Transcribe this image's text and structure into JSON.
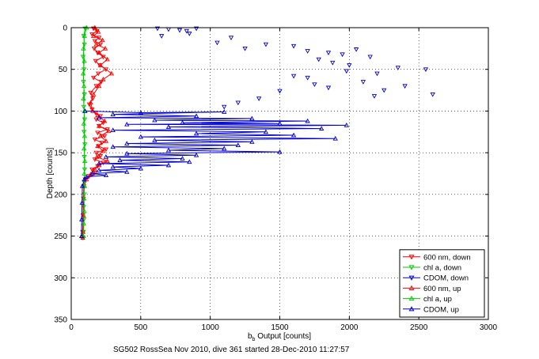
{
  "chart_data": {
    "type": "scatter",
    "title": "",
    "caption": "SG502 RossSea Nov 2010, dive 361 started 28-Dec-2010 11:27:57",
    "xlabel_main": "b",
    "xlabel_sub": "b",
    "xlabel_rest": " Output [counts]",
    "ylabel": "Depth [counts]",
    "xlim": [
      0,
      3000
    ],
    "ylim": [
      0,
      350
    ],
    "y_reversed": true,
    "grid": true,
    "legend_position": "bottom-right",
    "xticks": [
      0,
      500,
      1000,
      1500,
      2000,
      2500,
      3000
    ],
    "yticks": [
      0,
      50,
      100,
      150,
      200,
      250,
      300,
      350
    ],
    "series": [
      {
        "name": "600 nm, down",
        "color": "#ff0000",
        "marker": "triangle-down",
        "line": true,
        "points": [
          [
            160,
            1
          ],
          [
            185,
            4
          ],
          [
            150,
            8
          ],
          [
            200,
            12
          ],
          [
            170,
            16
          ],
          [
            210,
            20
          ],
          [
            165,
            25
          ],
          [
            190,
            30
          ],
          [
            230,
            35
          ],
          [
            175,
            40
          ],
          [
            205,
            45
          ],
          [
            250,
            50
          ],
          [
            195,
            55
          ],
          [
            160,
            60
          ],
          [
            215,
            65
          ],
          [
            180,
            70
          ],
          [
            140,
            78
          ],
          [
            155,
            85
          ],
          [
            130,
            92
          ],
          [
            150,
            98
          ],
          [
            175,
            102
          ],
          [
            210,
            106
          ],
          [
            180,
            110
          ],
          [
            230,
            114
          ],
          [
            200,
            118
          ],
          [
            260,
            122
          ],
          [
            190,
            126
          ],
          [
            240,
            130
          ],
          [
            170,
            134
          ],
          [
            220,
            138
          ],
          [
            195,
            142
          ],
          [
            250,
            146
          ],
          [
            180,
            150
          ],
          [
            210,
            154
          ],
          [
            170,
            158
          ],
          [
            230,
            162
          ],
          [
            190,
            166
          ],
          [
            150,
            170
          ],
          [
            170,
            174
          ],
          [
            130,
            178
          ],
          [
            100,
            182
          ],
          [
            90,
            190
          ],
          [
            88,
            205
          ],
          [
            85,
            225
          ],
          [
            82,
            245
          ],
          [
            80,
            252
          ]
        ]
      },
      {
        "name": "chl a, down",
        "color": "#00cc00",
        "marker": "triangle-down",
        "line": true,
        "points": [
          [
            100,
            1
          ],
          [
            90,
            10
          ],
          [
            95,
            20
          ],
          [
            85,
            35
          ],
          [
            92,
            50
          ],
          [
            88,
            65
          ],
          [
            95,
            80
          ],
          [
            90,
            95
          ],
          [
            96,
            110
          ],
          [
            92,
            125
          ],
          [
            98,
            140
          ],
          [
            94,
            155
          ],
          [
            96,
            170
          ],
          [
            92,
            185
          ],
          [
            94,
            200
          ],
          [
            90,
            215
          ],
          [
            92,
            230
          ],
          [
            88,
            245
          ],
          [
            86,
            252
          ]
        ]
      },
      {
        "name": "CDOM, down",
        "color": "#0000cc",
        "marker": "triangle-down",
        "line": false,
        "points": [
          [
            620,
            1
          ],
          [
            700,
            2
          ],
          [
            780,
            3
          ],
          [
            830,
            4
          ],
          [
            900,
            1
          ],
          [
            850,
            7
          ],
          [
            650,
            10
          ],
          [
            1150,
            12
          ],
          [
            1050,
            18
          ],
          [
            1400,
            20
          ],
          [
            1250,
            25
          ],
          [
            1600,
            22
          ],
          [
            1700,
            28
          ],
          [
            1850,
            30
          ],
          [
            2050,
            26
          ],
          [
            1950,
            32
          ],
          [
            2150,
            35
          ],
          [
            1780,
            38
          ],
          [
            1880,
            42
          ],
          [
            2000,
            45
          ],
          [
            2350,
            48
          ],
          [
            2550,
            50
          ],
          [
            1980,
            52
          ],
          [
            2200,
            55
          ],
          [
            1700,
            60
          ],
          [
            2100,
            65
          ],
          [
            2400,
            70
          ],
          [
            1850,
            72
          ],
          [
            2250,
            75
          ],
          [
            2600,
            80
          ],
          [
            2180,
            82
          ],
          [
            1600,
            58
          ],
          [
            1750,
            68
          ],
          [
            1500,
            76
          ],
          [
            1350,
            85
          ],
          [
            1200,
            90
          ],
          [
            1100,
            95
          ]
        ]
      },
      {
        "name": "600 nm, up",
        "color": "#ff0000",
        "marker": "triangle-up",
        "line": true,
        "points": [
          [
            170,
            0
          ],
          [
            195,
            5
          ],
          [
            160,
            10
          ],
          [
            225,
            15
          ],
          [
            180,
            20
          ],
          [
            245,
            25
          ],
          [
            200,
            30
          ],
          [
            260,
            38
          ],
          [
            210,
            45
          ],
          [
            290,
            55
          ],
          [
            230,
            62
          ],
          [
            200,
            70
          ],
          [
            160,
            80
          ],
          [
            140,
            90
          ],
          [
            155,
            100
          ],
          [
            190,
            105
          ],
          [
            240,
            112
          ],
          [
            200,
            118
          ],
          [
            270,
            124
          ],
          [
            210,
            130
          ],
          [
            250,
            136
          ],
          [
            190,
            142
          ],
          [
            230,
            148
          ],
          [
            185,
            155
          ],
          [
            260,
            160
          ],
          [
            200,
            165
          ],
          [
            170,
            170
          ],
          [
            140,
            176
          ],
          [
            110,
            182
          ],
          [
            95,
            190
          ],
          [
            90,
            205
          ],
          [
            88,
            225
          ],
          [
            85,
            245
          ],
          [
            83,
            252
          ]
        ]
      },
      {
        "name": "chl a, up",
        "color": "#00cc00",
        "marker": "triangle-up",
        "line": true,
        "points": [
          [
            110,
            0
          ],
          [
            95,
            10
          ],
          [
            88,
            25
          ],
          [
            94,
            40
          ],
          [
            86,
            55
          ],
          [
            92,
            70
          ],
          [
            88,
            85
          ],
          [
            94,
            100
          ],
          [
            90,
            115
          ],
          [
            96,
            130
          ],
          [
            92,
            145
          ],
          [
            98,
            160
          ],
          [
            94,
            175
          ],
          [
            96,
            190
          ],
          [
            92,
            205
          ],
          [
            94,
            220
          ],
          [
            90,
            235
          ],
          [
            88,
            250
          ]
        ]
      },
      {
        "name": "CDOM, up",
        "color": "#0000cc",
        "marker": "triangle-up",
        "line": true,
        "points": [
          [
            100,
            100
          ],
          [
            500,
            102
          ],
          [
            1100,
            101
          ],
          [
            300,
            104
          ],
          [
            900,
            106
          ],
          [
            200,
            108
          ],
          [
            1300,
            109
          ],
          [
            600,
            111
          ],
          [
            1700,
            112
          ],
          [
            800,
            114
          ],
          [
            1500,
            115
          ],
          [
            400,
            116
          ],
          [
            1980,
            117
          ],
          [
            700,
            119
          ],
          [
            1800,
            121
          ],
          [
            300,
            123
          ],
          [
            1400,
            125
          ],
          [
            900,
            127
          ],
          [
            1600,
            129
          ],
          [
            500,
            131
          ],
          [
            1900,
            133
          ],
          [
            600,
            135
          ],
          [
            1300,
            137
          ],
          [
            400,
            139
          ],
          [
            1200,
            141
          ],
          [
            300,
            143
          ],
          [
            1100,
            145
          ],
          [
            700,
            147
          ],
          [
            1500,
            149
          ],
          [
            400,
            151
          ],
          [
            900,
            153
          ],
          [
            250,
            155
          ],
          [
            800,
            157
          ],
          [
            350,
            159
          ],
          [
            850,
            161
          ],
          [
            200,
            163
          ],
          [
            700,
            165
          ],
          [
            300,
            167
          ],
          [
            500,
            169
          ],
          [
            200,
            171
          ],
          [
            400,
            173
          ],
          [
            150,
            175
          ],
          [
            250,
            177
          ],
          [
            110,
            179
          ],
          [
            95,
            182
          ],
          [
            80,
            190
          ],
          [
            78,
            210
          ],
          [
            75,
            230
          ],
          [
            74,
            250
          ]
        ]
      }
    ]
  }
}
